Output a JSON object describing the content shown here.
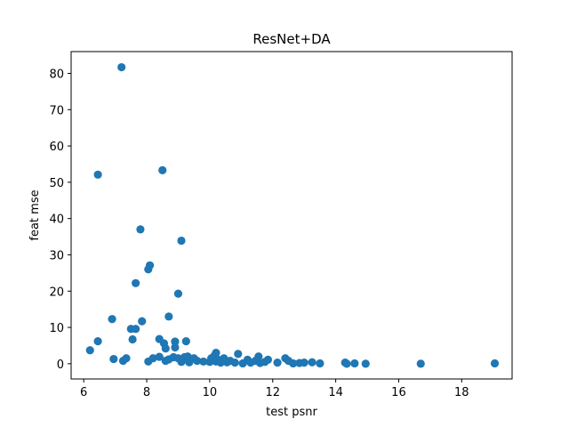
{
  "chart_data": {
    "type": "scatter",
    "title": "ResNet+DA",
    "xlabel": "test psnr",
    "ylabel": "feat mse",
    "xlim": [
      5.6,
      19.6
    ],
    "ylim": [
      -4.2,
      86
    ],
    "x_ticks": [
      6,
      8,
      10,
      12,
      14,
      16,
      18
    ],
    "y_ticks": [
      0,
      10,
      20,
      30,
      40,
      50,
      60,
      70,
      80
    ],
    "grid": false,
    "legend": "none",
    "marker_color": "#1f77b4",
    "series": [
      {
        "points": [
          [
            7.2,
            81.7
          ],
          [
            6.45,
            52.1
          ],
          [
            8.5,
            53.3
          ],
          [
            7.8,
            37.0
          ],
          [
            9.1,
            33.9
          ],
          [
            8.1,
            27.1
          ],
          [
            8.05,
            26.0
          ],
          [
            7.65,
            22.2
          ],
          [
            9.0,
            19.3
          ],
          [
            8.7,
            13.0
          ],
          [
            6.9,
            12.3
          ],
          [
            7.85,
            11.7
          ],
          [
            7.5,
            9.6
          ],
          [
            7.65,
            9.6
          ],
          [
            8.4,
            6.8
          ],
          [
            9.25,
            6.2
          ],
          [
            6.45,
            6.2
          ],
          [
            7.55,
            6.7
          ],
          [
            8.55,
            5.6
          ],
          [
            8.9,
            6.1
          ],
          [
            8.6,
            4.2
          ],
          [
            8.9,
            4.5
          ],
          [
            6.2,
            3.7
          ],
          [
            10.2,
            3.0
          ],
          [
            10.9,
            2.7
          ],
          [
            11.55,
            2.0
          ],
          [
            12.4,
            1.5
          ],
          [
            6.95,
            1.3
          ],
          [
            7.25,
            0.8
          ],
          [
            7.35,
            1.5
          ],
          [
            8.05,
            0.6
          ],
          [
            8.2,
            1.5
          ],
          [
            8.4,
            1.9
          ],
          [
            8.6,
            0.8
          ],
          [
            8.7,
            1.2
          ],
          [
            8.85,
            1.8
          ],
          [
            9.0,
            1.5
          ],
          [
            9.1,
            0.5
          ],
          [
            9.2,
            1.8
          ],
          [
            9.3,
            2.0
          ],
          [
            9.35,
            0.4
          ],
          [
            9.5,
            1.5
          ],
          [
            9.6,
            0.8
          ],
          [
            9.8,
            0.6
          ],
          [
            10.0,
            0.5
          ],
          [
            10.05,
            1.5
          ],
          [
            10.15,
            2.2
          ],
          [
            10.2,
            0.6
          ],
          [
            10.25,
            1.2
          ],
          [
            10.35,
            0.3
          ],
          [
            10.45,
            1.5
          ],
          [
            10.55,
            0.4
          ],
          [
            10.65,
            0.8
          ],
          [
            10.8,
            0.3
          ],
          [
            11.05,
            0.1
          ],
          [
            11.2,
            1.1
          ],
          [
            11.3,
            0.3
          ],
          [
            11.45,
            0.8
          ],
          [
            11.6,
            0.2
          ],
          [
            11.75,
            0.5
          ],
          [
            11.85,
            1.1
          ],
          [
            12.15,
            0.3
          ],
          [
            12.5,
            0.8
          ],
          [
            12.65,
            0.1
          ],
          [
            12.85,
            0.2
          ],
          [
            13.0,
            0.3
          ],
          [
            13.25,
            0.4
          ],
          [
            13.5,
            0.1
          ],
          [
            14.3,
            0.3
          ],
          [
            14.35,
            0.0
          ],
          [
            14.6,
            0.1
          ],
          [
            14.95,
            0.0
          ],
          [
            16.7,
            0.0
          ],
          [
            19.05,
            0.1
          ]
        ]
      }
    ]
  }
}
